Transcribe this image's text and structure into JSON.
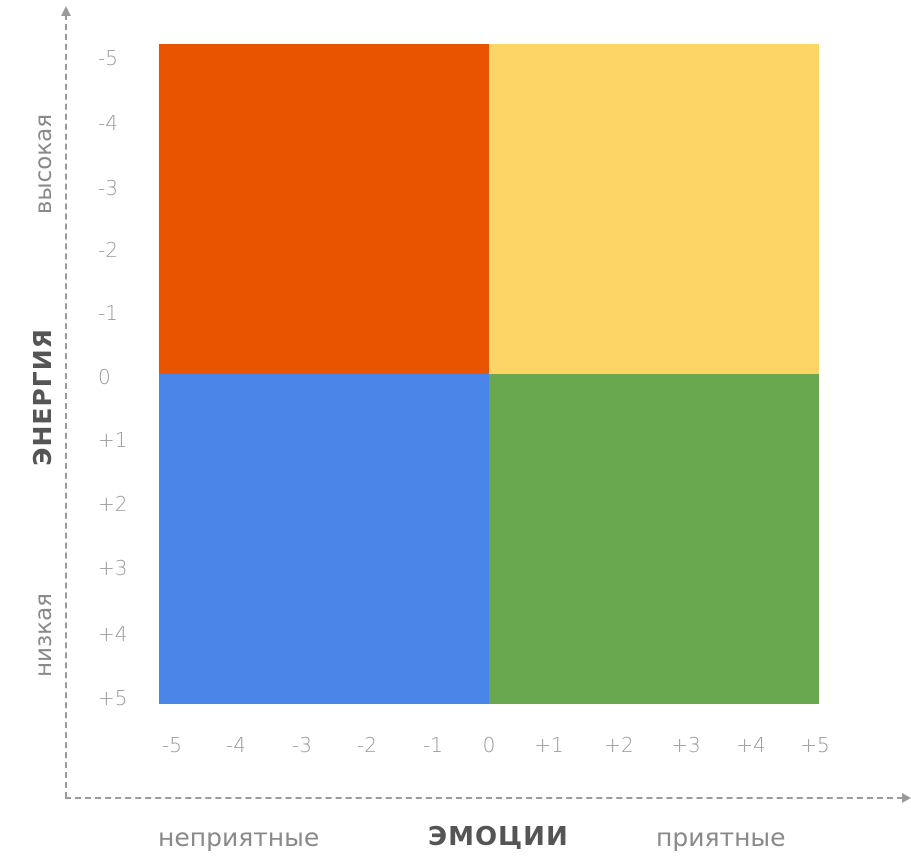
{
  "y_axis": {
    "title": "ЭНЕРГИЯ",
    "high_label": "высокая",
    "low_label": "низкая",
    "ticks": [
      "-5",
      "-4",
      "-3",
      "-2",
      "-1",
      "0",
      "+1",
      "+2",
      "+3",
      "+4",
      "+5"
    ]
  },
  "x_axis": {
    "title": "ЭМОЦИИ",
    "left_label": "неприятные",
    "right_label": "приятные",
    "ticks": [
      "-5",
      "-4",
      "-3",
      "-2",
      "-1",
      "0",
      "+1",
      "+2",
      "+3",
      "+4",
      "+5"
    ]
  },
  "quadrants": {
    "top_left": {
      "color": "#e95400"
    },
    "top_right": {
      "color": "#fdd566"
    },
    "bottom_left": {
      "color": "#4a86e8"
    },
    "bottom_right": {
      "color": "#6aa84f"
    }
  }
}
